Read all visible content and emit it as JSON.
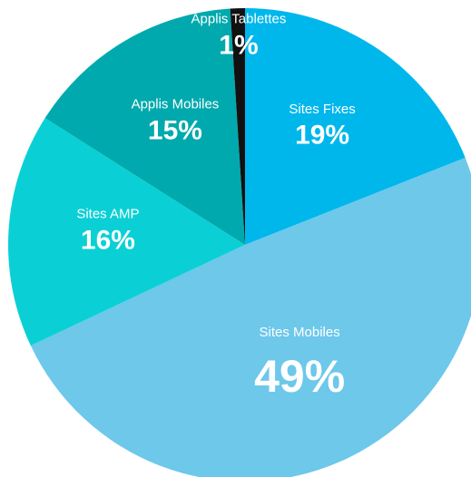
{
  "chart_data": {
    "type": "pie",
    "categories": [
      "Sites Fixes",
      "Sites Mobiles",
      "Sites AMP",
      "Applis Mobiles",
      "Applis Tablettes"
    ],
    "values": [
      19,
      49,
      16,
      15,
      1
    ],
    "value_labels": [
      "19%",
      "49%",
      "16%",
      "15%",
      "1%"
    ],
    "colors": [
      "#00b7ec",
      "#6dc8ea",
      "#0ad0d6",
      "#00a9ad",
      "#111111"
    ]
  }
}
